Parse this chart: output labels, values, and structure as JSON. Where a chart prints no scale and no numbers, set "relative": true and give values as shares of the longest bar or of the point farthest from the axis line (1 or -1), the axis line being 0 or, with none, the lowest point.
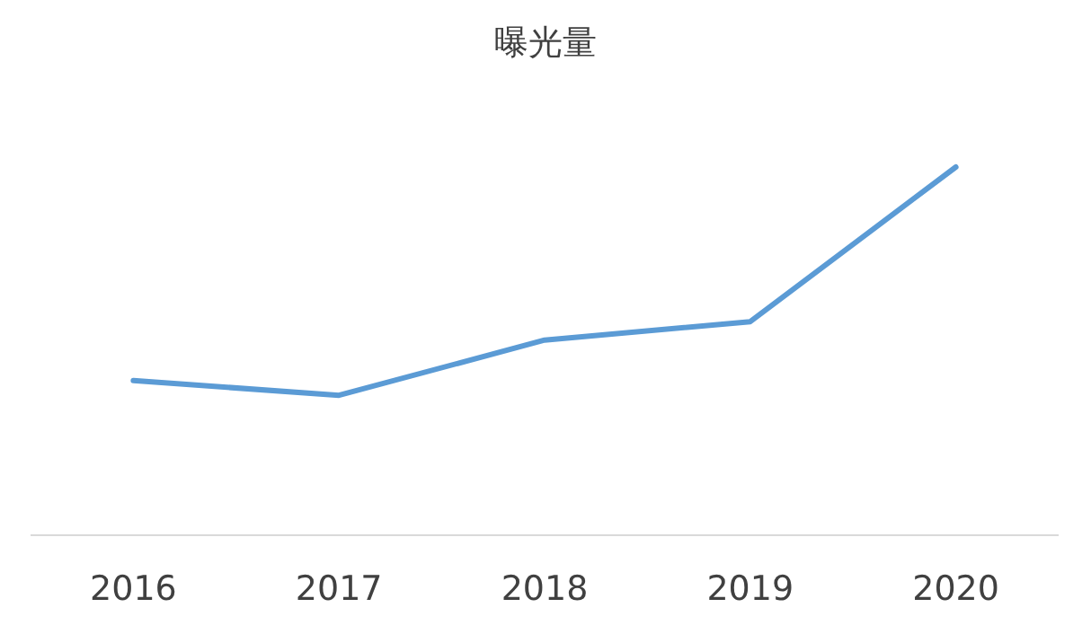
{
  "chart_data": {
    "type": "line",
    "title": "曝光量",
    "relative": true,
    "categories": [
      "2016",
      "2017",
      "2018",
      "2019",
      "2020"
    ],
    "series": [
      {
        "color": "#5b9bd5",
        "values": [
          0.42,
          0.38,
          0.53,
          0.58,
          1
        ]
      }
    ],
    "marker": "none",
    "line_style": "solid"
  }
}
